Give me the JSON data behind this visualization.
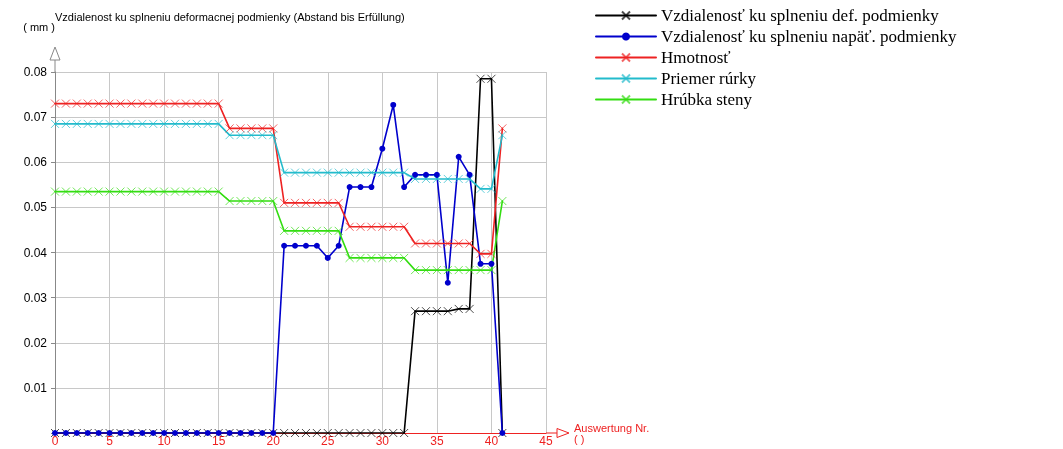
{
  "chart_data": {
    "type": "line",
    "title": "Vzdialenost ku splneniu deformacnej podmienky (Abstand bis Erfüllung)",
    "ylabel": "( mm )",
    "xlabel": "Auswertung Nr.\n( )",
    "x": [
      0,
      1,
      2,
      3,
      4,
      5,
      6,
      7,
      8,
      9,
      10,
      11,
      12,
      13,
      14,
      15,
      16,
      17,
      18,
      19,
      20,
      21,
      22,
      23,
      24,
      25,
      26,
      27,
      28,
      29,
      30,
      31,
      32,
      33,
      34,
      35,
      36,
      37,
      38,
      39,
      40,
      41
    ],
    "xlim": [
      0,
      45
    ],
    "xticks": [
      0,
      5,
      10,
      15,
      20,
      25,
      30,
      35,
      40,
      45
    ],
    "ylim": [
      0,
      0.08
    ],
    "yticks": [
      {
        "value": 0,
        "label": null
      },
      0.01,
      0.02,
      0.03,
      0.04,
      0.05,
      0.06,
      0.07,
      0.08
    ],
    "grid": true,
    "legend": "top right",
    "line_style": "solid",
    "series": [
      {
        "name": "Vzdialenosť ku splneniu def. podmienky",
        "color": "#000000",
        "marker": "cross",
        "values": [
          0,
          0,
          0,
          0,
          0,
          0,
          0,
          0,
          0,
          0,
          0,
          0,
          0,
          0,
          0,
          0,
          0,
          0,
          0,
          0,
          0,
          0,
          0,
          0,
          0,
          0,
          0,
          0,
          0,
          0,
          0,
          0,
          0,
          0.027,
          0.027,
          0.027,
          0.027,
          0.0275,
          0.0275,
          0.0785,
          0.0785,
          0
        ]
      },
      {
        "name": "Vzdialenosť ku splneniu napäť. podmienky",
        "color": "#0000cc",
        "marker": "circle",
        "values": [
          0,
          0,
          0,
          0,
          0,
          0,
          0,
          0,
          0,
          0,
          0,
          0,
          0,
          0,
          0,
          0,
          0,
          0,
          0,
          0,
          0,
          0.0415,
          0.0415,
          0.0415,
          0.0415,
          0.0388,
          0.0415,
          0.0545,
          0.0545,
          0.0545,
          0.063,
          0.0727,
          0.0545,
          0.0572,
          0.0572,
          0.0572,
          0.0333,
          0.0612,
          0.0572,
          0.0375,
          0.0375,
          0
        ]
      },
      {
        "name": "Hmotnosť",
        "color": "#ee2222",
        "marker": "cross",
        "values": [
          0.073,
          0.073,
          0.073,
          0.073,
          0.073,
          0.073,
          0.073,
          0.073,
          0.073,
          0.073,
          0.073,
          0.073,
          0.073,
          0.073,
          0.073,
          0.073,
          0.0675,
          0.0675,
          0.0675,
          0.0675,
          0.0675,
          0.051,
          0.051,
          0.051,
          0.051,
          0.051,
          0.051,
          0.0457,
          0.0457,
          0.0457,
          0.0457,
          0.0457,
          0.0457,
          0.042,
          0.042,
          0.042,
          0.042,
          0.042,
          0.042,
          0.0397,
          0.0397,
          0.0675
        ]
      },
      {
        "name": "Priemer rúrky",
        "color": "#22bbcc",
        "marker": "cross",
        "values": [
          0.0685,
          0.0685,
          0.0685,
          0.0685,
          0.0685,
          0.0685,
          0.0685,
          0.0685,
          0.0685,
          0.0685,
          0.0685,
          0.0685,
          0.0685,
          0.0685,
          0.0685,
          0.0685,
          0.066,
          0.066,
          0.066,
          0.066,
          0.066,
          0.0577,
          0.0577,
          0.0577,
          0.0577,
          0.0577,
          0.0577,
          0.0577,
          0.0577,
          0.0577,
          0.0577,
          0.0577,
          0.0577,
          0.0563,
          0.0563,
          0.0563,
          0.0563,
          0.0563,
          0.0563,
          0.0541,
          0.0541,
          0.066
        ]
      },
      {
        "name": "Hrúbka steny",
        "color": "#33dd11",
        "marker": "cross",
        "values": [
          0.0535,
          0.0535,
          0.0535,
          0.0535,
          0.0535,
          0.0535,
          0.0535,
          0.0535,
          0.0535,
          0.0535,
          0.0535,
          0.0535,
          0.0535,
          0.0535,
          0.0535,
          0.0535,
          0.0514,
          0.0514,
          0.0514,
          0.0514,
          0.0514,
          0.0448,
          0.0448,
          0.0448,
          0.0448,
          0.0448,
          0.0448,
          0.0388,
          0.0388,
          0.0388,
          0.0388,
          0.0388,
          0.0388,
          0.0361,
          0.0361,
          0.0361,
          0.0361,
          0.0361,
          0.0361,
          0.0361,
          0.0361,
          0.0514
        ]
      }
    ]
  }
}
